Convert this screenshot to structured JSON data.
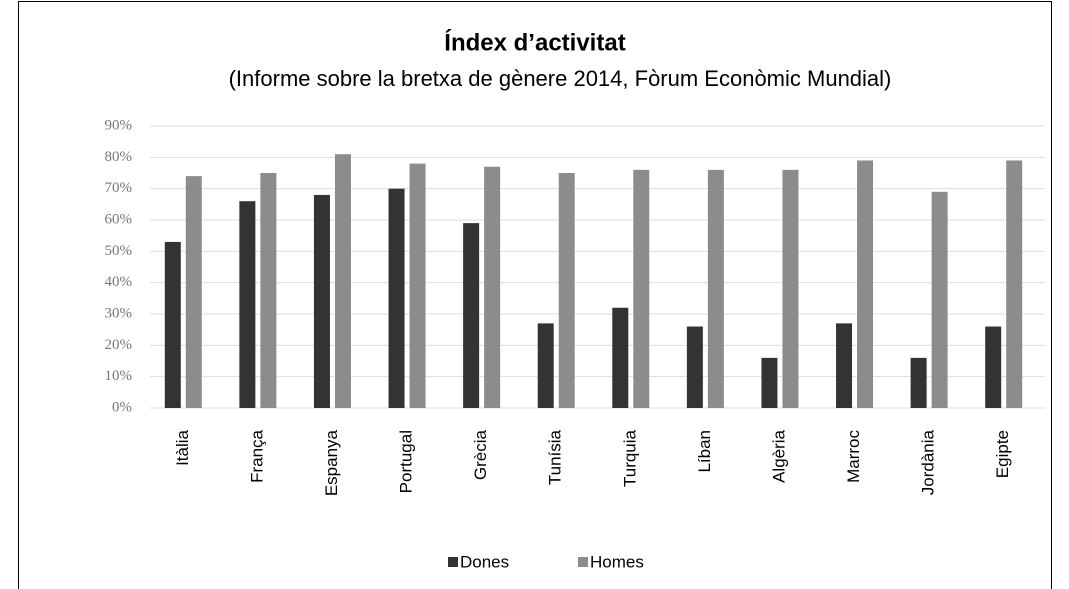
{
  "chart_data": {
    "type": "bar",
    "title": "Índex d’activitat",
    "subtitle": "(Informe sobre la bretxa de gènere 2014, Fòrum Econòmic Mundial)",
    "categories": [
      "Itàlia",
      "França",
      "Espanya",
      "Portugal",
      "Grècia",
      "Tunísia",
      "Turquia",
      "Líban",
      "Algèria",
      "Marroc",
      "Jordània",
      "Egipte"
    ],
    "series": [
      {
        "name": "Dones",
        "color": "#333333",
        "values": [
          53,
          66,
          68,
          70,
          59,
          27,
          32,
          26,
          16,
          27,
          16,
          26
        ]
      },
      {
        "name": "Homes",
        "color": "#8c8c8c",
        "values": [
          74,
          75,
          81,
          78,
          77,
          75,
          76,
          76,
          76,
          79,
          69,
          79
        ]
      }
    ],
    "ylim": [
      0,
      90
    ],
    "yticks": [
      {
        "value": 0,
        "label": "0%"
      },
      {
        "value": 10,
        "label": "10%"
      },
      {
        "value": 20,
        "label": "20%"
      },
      {
        "value": 30,
        "label": "30%"
      },
      {
        "value": 40,
        "label": "40%"
      },
      {
        "value": 50,
        "label": "50%"
      },
      {
        "value": 60,
        "label": "60%"
      },
      {
        "value": 70,
        "label": "70%"
      },
      {
        "value": 80,
        "label": "80%"
      },
      {
        "value": 90,
        "label": "90%"
      }
    ],
    "grid": true,
    "legend": "bottom"
  }
}
